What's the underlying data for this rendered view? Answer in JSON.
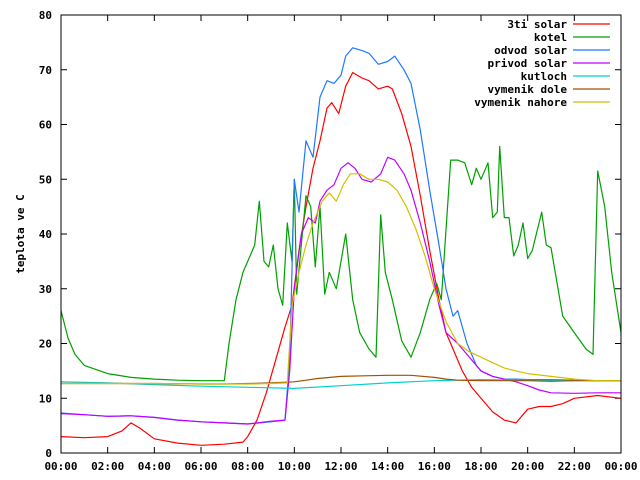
{
  "chart_data": {
    "type": "line",
    "title": "",
    "xlabel": "",
    "ylabel": "teplota ve C",
    "xlim": [
      0,
      24
    ],
    "ylim": [
      0,
      80
    ],
    "x_ticks": [
      "00:00",
      "02:00",
      "04:00",
      "06:00",
      "08:00",
      "10:00",
      "12:00",
      "14:00",
      "16:00",
      "18:00",
      "20:00",
      "22:00",
      "00:00"
    ],
    "y_ticks": [
      0,
      10,
      20,
      30,
      40,
      50,
      60,
      70,
      80
    ],
    "grid": false,
    "legend_position": "top-right",
    "series": [
      {
        "name": "3ti solar",
        "color": "#ff0000",
        "points": [
          [
            0,
            3
          ],
          [
            1,
            2.8
          ],
          [
            2,
            3
          ],
          [
            2.6,
            4
          ],
          [
            3,
            5.5
          ],
          [
            3.4,
            4.5
          ],
          [
            4,
            2.6
          ],
          [
            5,
            1.8
          ],
          [
            6,
            1.4
          ],
          [
            7,
            1.6
          ],
          [
            7.8,
            2
          ],
          [
            8,
            3
          ],
          [
            8.4,
            6
          ],
          [
            8.8,
            11
          ],
          [
            9.2,
            17
          ],
          [
            9.6,
            23
          ],
          [
            9.9,
            27
          ],
          [
            10.2,
            37
          ],
          [
            10.5,
            45
          ],
          [
            10.8,
            52
          ],
          [
            11.1,
            57
          ],
          [
            11.4,
            63
          ],
          [
            11.6,
            64
          ],
          [
            11.9,
            62
          ],
          [
            12.2,
            67
          ],
          [
            12.5,
            69.5
          ],
          [
            12.9,
            68.5
          ],
          [
            13.2,
            68
          ],
          [
            13.6,
            66.5
          ],
          [
            14,
            67
          ],
          [
            14.2,
            66.5
          ],
          [
            14.6,
            62
          ],
          [
            15,
            56
          ],
          [
            15.4,
            47
          ],
          [
            15.8,
            37
          ],
          [
            16.2,
            28
          ],
          [
            16.5,
            22
          ],
          [
            16.8,
            19
          ],
          [
            17.2,
            15
          ],
          [
            17.6,
            12
          ],
          [
            18,
            10
          ],
          [
            18.5,
            7.5
          ],
          [
            19,
            6
          ],
          [
            19.5,
            5.5
          ],
          [
            20,
            8
          ],
          [
            20.5,
            8.5
          ],
          [
            21,
            8.5
          ],
          [
            21.5,
            9
          ],
          [
            22,
            10
          ],
          [
            23,
            10.5
          ],
          [
            24,
            10
          ]
        ]
      },
      {
        "name": "kotel",
        "color": "#00a000",
        "points": [
          [
            0,
            26
          ],
          [
            0.3,
            21
          ],
          [
            0.6,
            18
          ],
          [
            1,
            16
          ],
          [
            2,
            14.5
          ],
          [
            3,
            13.8
          ],
          [
            4,
            13.5
          ],
          [
            5,
            13.3
          ],
          [
            6,
            13.2
          ],
          [
            7,
            13.2
          ],
          [
            7.2,
            20
          ],
          [
            7.5,
            28
          ],
          [
            7.8,
            33
          ],
          [
            8,
            35
          ],
          [
            8.3,
            38
          ],
          [
            8.5,
            46
          ],
          [
            8.7,
            35
          ],
          [
            8.9,
            34
          ],
          [
            9.1,
            38
          ],
          [
            9.3,
            30
          ],
          [
            9.5,
            27
          ],
          [
            9.7,
            42
          ],
          [
            9.9,
            35
          ],
          [
            10,
            50
          ],
          [
            10.1,
            29
          ],
          [
            10.3,
            38
          ],
          [
            10.5,
            47
          ],
          [
            10.7,
            45
          ],
          [
            10.9,
            34
          ],
          [
            11.1,
            45
          ],
          [
            11.3,
            29
          ],
          [
            11.5,
            33
          ],
          [
            11.8,
            30
          ],
          [
            12.2,
            40
          ],
          [
            12.5,
            28
          ],
          [
            12.8,
            22
          ],
          [
            13.2,
            19
          ],
          [
            13.5,
            17.5
          ],
          [
            13.7,
            43.5
          ],
          [
            13.9,
            33
          ],
          [
            14.2,
            28
          ],
          [
            14.6,
            20.5
          ],
          [
            15,
            17.5
          ],
          [
            15.4,
            22
          ],
          [
            15.8,
            28
          ],
          [
            16.1,
            31
          ],
          [
            16.3,
            28
          ],
          [
            16.7,
            53.5
          ],
          [
            17,
            53.5
          ],
          [
            17.3,
            53
          ],
          [
            17.6,
            49
          ],
          [
            17.8,
            52
          ],
          [
            18,
            50
          ],
          [
            18.3,
            53
          ],
          [
            18.5,
            43
          ],
          [
            18.7,
            44
          ],
          [
            18.8,
            56
          ],
          [
            19,
            43
          ],
          [
            19.2,
            43
          ],
          [
            19.4,
            36
          ],
          [
            19.6,
            38
          ],
          [
            19.8,
            42
          ],
          [
            20,
            35.5
          ],
          [
            20.2,
            37
          ],
          [
            20.4,
            40.5
          ],
          [
            20.6,
            44
          ],
          [
            20.8,
            38
          ],
          [
            21,
            37.5
          ],
          [
            21.2,
            32.5
          ],
          [
            21.5,
            25
          ],
          [
            22,
            22
          ],
          [
            22.5,
            19
          ],
          [
            22.8,
            18
          ],
          [
            23,
            51.5
          ],
          [
            23.3,
            45
          ],
          [
            23.6,
            33
          ],
          [
            24,
            22
          ]
        ]
      },
      {
        "name": "odvod solar",
        "color": "#1e78ff",
        "points": [
          [
            0,
            7.3
          ],
          [
            1,
            7
          ],
          [
            2,
            6.7
          ],
          [
            3,
            6.8
          ],
          [
            4,
            6.5
          ],
          [
            5,
            6
          ],
          [
            6,
            5.7
          ],
          [
            7,
            5.5
          ],
          [
            8,
            5.3
          ],
          [
            9,
            5.7
          ],
          [
            9.6,
            6
          ],
          [
            9.8,
            17
          ],
          [
            10,
            50
          ],
          [
            10.2,
            44
          ],
          [
            10.5,
            57
          ],
          [
            10.8,
            54
          ],
          [
            11.1,
            65
          ],
          [
            11.4,
            68
          ],
          [
            11.7,
            67.5
          ],
          [
            12,
            69
          ],
          [
            12.2,
            72.5
          ],
          [
            12.5,
            74
          ],
          [
            12.9,
            73.5
          ],
          [
            13.2,
            73
          ],
          [
            13.6,
            71
          ],
          [
            14,
            71.5
          ],
          [
            14.3,
            72.5
          ],
          [
            14.7,
            70
          ],
          [
            15,
            67.5
          ],
          [
            15.4,
            59
          ],
          [
            15.8,
            48
          ],
          [
            16.2,
            38
          ],
          [
            16.5,
            30
          ],
          [
            16.8,
            25
          ],
          [
            17,
            26
          ],
          [
            17.4,
            20
          ],
          [
            17.8,
            16
          ],
          [
            18,
            15
          ],
          [
            18.5,
            14
          ],
          [
            19,
            13.5
          ],
          [
            19.5,
            13.5
          ],
          [
            20,
            13.4
          ],
          [
            21,
            13.4
          ],
          [
            22,
            13.3
          ],
          [
            23,
            13.2
          ],
          [
            24,
            13.2
          ]
        ]
      },
      {
        "name": "privod solar",
        "color": "#c000ff",
        "points": [
          [
            0,
            7.2
          ],
          [
            1,
            7
          ],
          [
            2,
            6.7
          ],
          [
            3,
            6.8
          ],
          [
            4,
            6.5
          ],
          [
            5,
            6
          ],
          [
            6,
            5.7
          ],
          [
            7,
            5.5
          ],
          [
            8,
            5.3
          ],
          [
            9,
            5.8
          ],
          [
            9.6,
            6
          ],
          [
            9.8,
            15
          ],
          [
            10,
            30
          ],
          [
            10.3,
            40
          ],
          [
            10.6,
            43
          ],
          [
            10.9,
            42
          ],
          [
            11.1,
            46
          ],
          [
            11.4,
            48
          ],
          [
            11.7,
            49
          ],
          [
            12,
            52
          ],
          [
            12.3,
            53
          ],
          [
            12.6,
            52
          ],
          [
            12.9,
            50
          ],
          [
            13.3,
            49.5
          ],
          [
            13.7,
            51
          ],
          [
            14,
            54
          ],
          [
            14.3,
            53.5
          ],
          [
            14.7,
            51
          ],
          [
            15,
            48
          ],
          [
            15.4,
            42
          ],
          [
            15.8,
            35
          ],
          [
            16.2,
            27
          ],
          [
            16.5,
            22
          ],
          [
            17,
            20
          ],
          [
            17.4,
            18
          ],
          [
            17.8,
            16
          ],
          [
            18,
            15
          ],
          [
            18.5,
            14
          ],
          [
            19,
            13.5
          ],
          [
            19.5,
            13
          ],
          [
            20,
            12.3
          ],
          [
            20.5,
            11.5
          ],
          [
            21,
            11
          ],
          [
            22,
            10.9
          ],
          [
            23,
            11
          ],
          [
            24,
            11
          ]
        ]
      },
      {
        "name": "kutloch",
        "color": "#00d0d0",
        "points": [
          [
            0,
            13
          ],
          [
            2,
            12.8
          ],
          [
            4,
            12.5
          ],
          [
            6,
            12.2
          ],
          [
            8,
            12
          ],
          [
            10,
            11.8
          ],
          [
            12,
            12.3
          ],
          [
            14,
            12.8
          ],
          [
            16,
            13.2
          ],
          [
            18,
            13.4
          ],
          [
            20,
            13.3
          ],
          [
            22,
            13.2
          ],
          [
            24,
            13.2
          ]
        ]
      },
      {
        "name": "vymenik dole",
        "color": "#a05000",
        "points": [
          [
            0,
            12.7
          ],
          [
            2,
            12.7
          ],
          [
            4,
            12.7
          ],
          [
            6,
            12.6
          ],
          [
            7,
            12.6
          ],
          [
            8,
            12.7
          ],
          [
            9,
            12.8
          ],
          [
            10,
            13
          ],
          [
            10.5,
            13.3
          ],
          [
            11,
            13.6
          ],
          [
            12,
            14
          ],
          [
            13,
            14.1
          ],
          [
            14,
            14.2
          ],
          [
            15,
            14.2
          ],
          [
            16,
            13.8
          ],
          [
            16.5,
            13.5
          ],
          [
            17,
            13.3
          ],
          [
            18,
            13.2
          ],
          [
            19,
            13.2
          ],
          [
            20,
            13.2
          ],
          [
            21,
            13.1
          ],
          [
            22,
            13.2
          ],
          [
            23,
            13.2
          ],
          [
            24,
            13.2
          ]
        ]
      },
      {
        "name": "vymenik nahore",
        "color": "#d0c000",
        "points": [
          [
            0,
            12.7
          ],
          [
            2,
            12.7
          ],
          [
            4,
            12.7
          ],
          [
            6,
            12.6
          ],
          [
            7,
            12.6
          ],
          [
            8,
            12.6
          ],
          [
            9,
            12.7
          ],
          [
            9.7,
            12.8
          ],
          [
            9.9,
            27
          ],
          [
            10.2,
            33
          ],
          [
            10.5,
            38
          ],
          [
            10.8,
            42
          ],
          [
            11.2,
            46
          ],
          [
            11.5,
            47.5
          ],
          [
            11.8,
            46
          ],
          [
            12.1,
            49
          ],
          [
            12.4,
            51
          ],
          [
            12.8,
            51
          ],
          [
            13.2,
            50
          ],
          [
            13.6,
            50
          ],
          [
            14,
            49.5
          ],
          [
            14.4,
            48
          ],
          [
            14.8,
            45
          ],
          [
            15.2,
            41
          ],
          [
            15.6,
            36
          ],
          [
            16,
            30
          ],
          [
            16.5,
            24
          ],
          [
            17,
            20
          ],
          [
            17.5,
            18.5
          ],
          [
            18,
            17.5
          ],
          [
            18.5,
            16.5
          ],
          [
            19,
            15.5
          ],
          [
            19.5,
            15
          ],
          [
            20,
            14.5
          ],
          [
            21,
            14
          ],
          [
            22,
            13.5
          ],
          [
            23,
            13.2
          ],
          [
            24,
            13.2
          ]
        ]
      }
    ]
  }
}
